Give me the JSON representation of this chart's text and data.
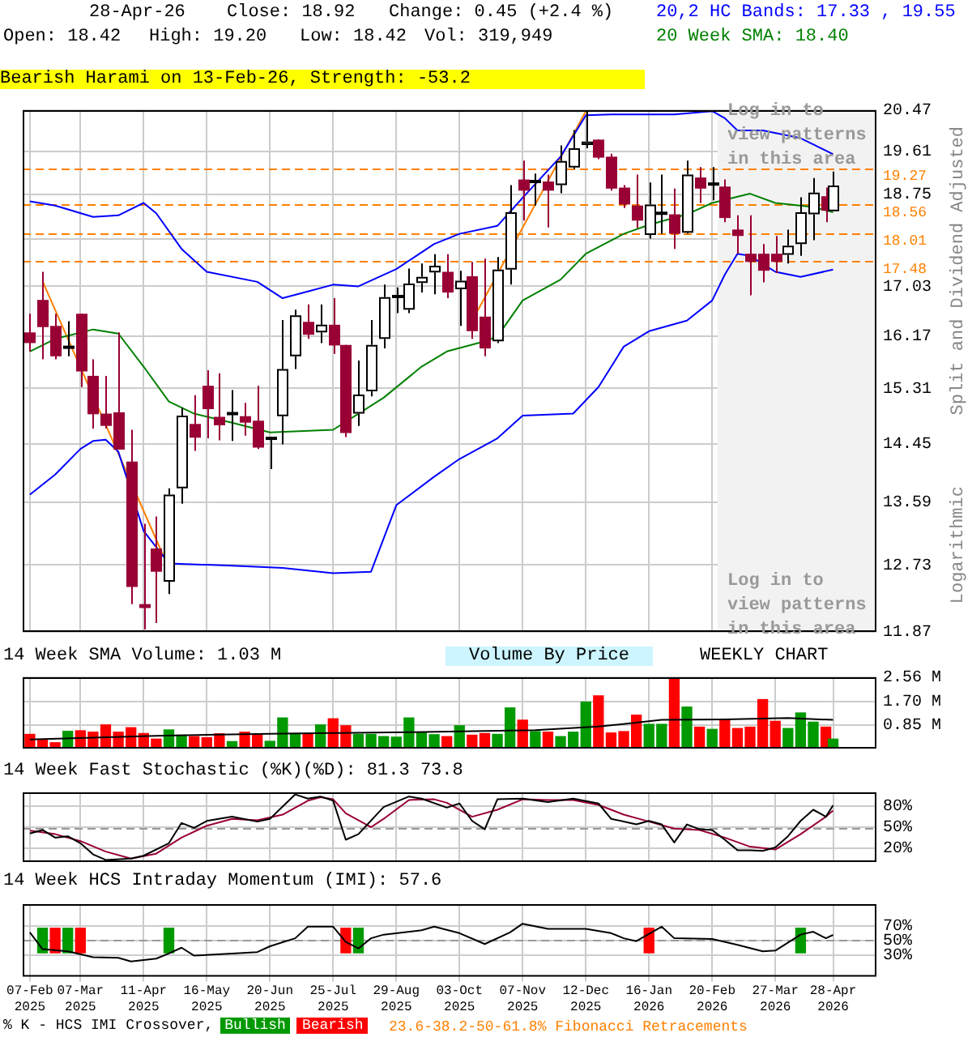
{
  "chart_data": [
    {
      "type": "candlestick",
      "title": "Bearish Harami on 13-Feb-26, Strength: -53.2",
      "ylabel": "Split and Dividend Adjusted",
      "x": [
        "2025-02-07",
        "2025-02-14",
        "2025-02-21",
        "2025-02-28",
        "2025-03-07",
        "2025-03-14",
        "2025-03-21",
        "2025-03-28",
        "2025-04-04",
        "2025-04-11",
        "2025-04-18",
        "2025-04-25",
        "2025-05-02",
        "2025-05-09",
        "2025-05-16",
        "2025-05-23",
        "2025-05-30",
        "2025-06-06",
        "2025-06-13",
        "2025-06-20",
        "2025-06-27",
        "2025-07-04",
        "2025-07-11",
        "2025-07-18",
        "2025-07-25",
        "2025-08-01",
        "2025-08-08",
        "2025-08-15",
        "2025-08-22",
        "2025-08-29",
        "2025-09-05",
        "2025-09-12",
        "2025-09-19",
        "2025-09-26",
        "2025-10-03",
        "2025-10-10",
        "2025-10-17",
        "2025-10-24",
        "2025-10-31",
        "2025-11-07",
        "2025-11-14",
        "2025-11-21",
        "2025-11-28",
        "2025-12-05",
        "2025-12-12",
        "2025-12-19",
        "2025-12-26",
        "2026-01-02",
        "2026-01-09",
        "2026-01-16",
        "2026-01-23",
        "2026-01-30",
        "2026-02-06",
        "2026-02-13",
        "2026-02-20",
        "2026-02-27",
        "2026-03-06",
        "2026-03-13",
        "2026-03-20",
        "2026-03-27",
        "2026-04-03",
        "2026-04-10",
        "2026-04-17",
        "2026-04-24",
        "2026-04-28"
      ],
      "ohlc": [
        [
          16.23,
          16.55,
          15.91,
          16.05
        ],
        [
          16.79,
          17.29,
          15.78,
          16.32
        ],
        [
          16.34,
          16.55,
          15.78,
          15.83
        ],
        [
          15.98,
          16.42,
          15.83,
          15.98
        ],
        [
          16.55,
          16.55,
          15.33,
          15.58
        ],
        [
          15.51,
          15.78,
          14.68,
          14.9
        ],
        [
          14.91,
          15.51,
          14.68,
          14.72
        ],
        [
          14.93,
          16.23,
          14.36,
          14.36
        ],
        [
          14.18,
          14.66,
          12.22,
          12.44
        ],
        [
          12.22,
          13.29,
          11.9,
          12.17
        ],
        [
          12.95,
          13.39,
          11.98,
          12.64
        ],
        [
          12.51,
          13.79,
          12.35,
          13.7
        ],
        [
          13.79,
          15.0,
          13.57,
          14.88
        ],
        [
          14.75,
          15.2,
          14.34,
          14.54
        ],
        [
          15.35,
          15.6,
          14.53,
          14.98
        ],
        [
          14.86,
          15.55,
          14.5,
          14.73
        ],
        [
          14.91,
          15.28,
          14.49,
          14.91
        ],
        [
          14.87,
          15.08,
          14.57,
          14.77
        ],
        [
          14.8,
          15.35,
          14.37,
          14.39
        ],
        [
          14.53,
          14.53,
          14.07,
          14.53
        ],
        [
          14.87,
          16.44,
          14.44,
          15.62
        ],
        [
          15.83,
          16.62,
          15.62,
          16.52
        ],
        [
          16.41,
          16.71,
          16.12,
          16.19
        ],
        [
          16.23,
          16.71,
          16.05,
          16.36
        ],
        [
          16.36,
          16.82,
          15.87,
          16.01
        ],
        [
          16.02,
          16.02,
          14.55,
          14.61
        ],
        [
          14.91,
          15.76,
          14.72,
          15.21
        ],
        [
          15.26,
          16.44,
          15.18,
          16.02
        ],
        [
          16.12,
          17.06,
          15.96,
          16.84
        ],
        [
          16.85,
          17.01,
          16.56,
          16.85
        ],
        [
          16.62,
          17.35,
          16.56,
          17.08
        ],
        [
          17.09,
          17.44,
          16.92,
          17.2
        ],
        [
          17.28,
          17.61,
          16.89,
          17.4
        ],
        [
          17.29,
          17.61,
          16.82,
          16.92
        ],
        [
          16.98,
          17.31,
          16.34,
          17.13
        ],
        [
          17.21,
          17.47,
          16.12,
          16.25
        ],
        [
          16.5,
          17.53,
          15.83,
          15.96
        ],
        [
          16.08,
          17.56,
          16.05,
          17.33
        ],
        [
          17.33,
          18.93,
          17.06,
          18.4
        ],
        [
          19.04,
          19.42,
          18.24,
          18.82
        ],
        [
          19.0,
          19.16,
          18.53,
          19.0
        ],
        [
          19.0,
          19.14,
          18.11,
          18.82
        ],
        [
          18.93,
          19.73,
          18.77,
          19.41
        ],
        [
          19.28,
          20.05,
          19.25,
          19.67
        ],
        [
          19.74,
          20.45,
          19.67,
          19.81
        ],
        [
          19.85,
          19.85,
          19.45,
          19.48
        ],
        [
          19.5,
          19.56,
          18.82,
          18.86
        ],
        [
          18.88,
          18.93,
          18.48,
          18.55
        ],
        [
          18.53,
          19.14,
          18.1,
          18.24
        ],
        [
          17.97,
          18.98,
          17.9,
          18.55
        ],
        [
          18.38,
          19.14,
          17.99,
          18.38
        ],
        [
          18.36,
          18.86,
          17.71,
          17.99
        ],
        [
          18.01,
          19.42,
          17.99,
          19.14
        ],
        [
          19.08,
          19.29,
          18.58,
          18.86
        ],
        [
          18.95,
          19.29,
          18.63,
          18.95
        ],
        [
          18.9,
          19.04,
          18.21,
          18.29
        ],
        [
          18.07,
          18.34,
          17.62,
          17.95
        ],
        [
          17.62,
          18.34,
          16.87,
          17.47
        ],
        [
          17.62,
          17.8,
          17.1,
          17.31
        ],
        [
          17.62,
          17.95,
          17.27,
          17.47
        ],
        [
          17.6,
          18.07,
          17.44,
          17.77
        ],
        [
          17.8,
          18.69,
          17.58,
          18.4
        ],
        [
          18.36,
          19.07,
          17.87,
          18.78
        ],
        [
          18.71,
          18.88,
          18.21,
          18.43
        ],
        [
          18.42,
          19.2,
          18.42,
          18.92
        ]
      ],
      "series": [
        {
          "type": "line",
          "color": "#0000ff",
          "x": [
            "2025-02-07",
            "2025-02-21",
            "2025-03-14",
            "2025-03-28",
            "2025-04-11",
            "2025-04-18",
            "2025-05-02",
            "2025-05-16",
            "2025-06-13",
            "2025-06-27",
            "2025-07-11",
            "2025-07-25",
            "2025-08-08",
            "2025-08-29",
            "2025-09-19",
            "2025-10-03",
            "2025-10-24",
            "2025-11-07",
            "2025-11-28",
            "2025-12-12",
            "2025-12-26",
            "2026-01-30",
            "2026-02-20",
            "2026-02-27",
            "2026-03-06",
            "2026-03-20",
            "2026-04-10",
            "2026-04-28"
          ],
          "values": [
            18.61,
            18.53,
            18.31,
            18.34,
            18.58,
            18.38,
            17.71,
            17.29,
            17.11,
            16.82,
            16.94,
            17.06,
            17.03,
            17.34,
            17.8,
            17.99,
            18.14,
            18.68,
            19.5,
            20.36,
            20.38,
            20.38,
            20.45,
            20.3,
            20.04,
            20.04,
            19.88,
            19.55
          ]
        },
        {
          "type": "line",
          "color": "#0000ff",
          "x": [
            "2025-02-07",
            "2025-02-21",
            "2025-03-07",
            "2025-03-14",
            "2025-03-21",
            "2025-03-28",
            "2025-04-11",
            "2025-04-25",
            "2025-05-30",
            "2025-06-27",
            "2025-07-25",
            "2025-08-15",
            "2025-08-29",
            "2025-09-19",
            "2025-10-03",
            "2025-10-24",
            "2025-11-07",
            "2025-12-05",
            "2025-12-19",
            "2026-01-02",
            "2026-01-16",
            "2026-02-06",
            "2026-02-20",
            "2026-02-27",
            "2026-03-06",
            "2026-03-13",
            "2026-03-27",
            "2026-04-10",
            "2026-04-28"
          ],
          "values": [
            13.7,
            13.99,
            14.37,
            14.49,
            14.51,
            14.33,
            13.19,
            12.75,
            12.72,
            12.69,
            12.62,
            12.64,
            13.55,
            13.96,
            14.22,
            14.53,
            14.88,
            14.91,
            15.33,
            15.99,
            16.25,
            16.43,
            16.78,
            17.24,
            17.62,
            17.58,
            17.29,
            17.2,
            17.33
          ]
        },
        {
          "type": "line",
          "color": "#008000",
          "x": [
            "2025-02-07",
            "2025-02-21",
            "2025-03-14",
            "2025-03-28",
            "2025-04-11",
            "2025-04-25",
            "2025-05-09",
            "2025-05-30",
            "2025-06-20",
            "2025-07-25",
            "2025-08-22",
            "2025-09-12",
            "2025-09-26",
            "2025-10-17",
            "2025-10-24",
            "2025-11-07",
            "2025-11-28",
            "2025-12-12",
            "2026-01-02",
            "2026-01-16",
            "2026-02-06",
            "2026-02-20",
            "2026-03-13",
            "2026-03-27",
            "2026-04-17",
            "2026-04-28"
          ],
          "values": [
            15.91,
            16.12,
            16.28,
            16.21,
            15.66,
            15.1,
            14.91,
            14.77,
            14.62,
            14.66,
            15.16,
            15.66,
            15.91,
            16.08,
            16.16,
            16.78,
            17.15,
            17.62,
            17.99,
            18.16,
            18.36,
            18.58,
            18.76,
            18.58,
            18.5,
            18.4
          ]
        },
        {
          "type": "line",
          "color": "#ff8000",
          "x": [
            "2025-02-14",
            "2025-04-22"
          ],
          "values": [
            17.12,
            12.85
          ]
        },
        {
          "type": "line",
          "color": "#ff8000",
          "x": [
            "2025-10-13",
            "2025-12-12"
          ],
          "values": [
            16.6,
            20.45
          ]
        }
      ],
      "xlim": [
        "2025-02-03",
        "2026-05-22"
      ],
      "xticks": [
        "2025-02-07",
        "2025-03-07",
        "2025-04-11",
        "2025-05-16",
        "2025-06-20",
        "2025-07-25",
        "2025-08-29",
        "2025-10-03",
        "2025-11-07",
        "2025-12-12",
        "2026-01-16",
        "2026-02-20",
        "2026-03-27",
        "2026-04-28"
      ],
      "ylim": [
        11.87,
        20.47
      ],
      "yticks": [
        11.87,
        12.73,
        13.59,
        14.45,
        15.31,
        16.17,
        17.03,
        {
          "value": 17.89,
          "label": null
        },
        18.75,
        19.61,
        20.47
      ],
      "log": true,
      "grid": true,
      "tick_labels": "y",
      "ref_lines": [
        {
          "axis": "y",
          "value": 19.27,
          "label": "19.27",
          "color": "#ff8000",
          "line_style": "dashed"
        },
        {
          "axis": "y",
          "value": 18.56,
          "label": "18.56",
          "color": "#ff8000",
          "line_style": "dashed"
        },
        {
          "axis": "y",
          "value": 18.01,
          "label": "18.01",
          "color": "#ff8000",
          "line_style": "dashed"
        },
        {
          "axis": "y",
          "value": 17.48,
          "label": "17.48",
          "color": "#ff8000",
          "line_style": "dashed"
        }
      ],
      "bands": [
        {
          "axis": "x",
          "from": "2026-02-23",
          "to": "2026-05-22",
          "color": "#f2f2f2"
        }
      ],
      "annotations": [
        "28-Apr-26",
        "Close: 18.92",
        "Change: 0.45 (+2.4 %)",
        "Open: 18.42",
        "High: 19.20",
        "Low: 18.42",
        "Vol: 319,949",
        "20,2 HC Bands: 17.33 , 19.55",
        "20 Week SMA: 18.40",
        "Log in to view patterns in this area",
        "Log in to view patterns in this area",
        "Logarithmic",
        "23.6-38.2-50-61.8% Fibonacci Retracements"
      ]
    },
    {
      "type": "bar",
      "title": "14 Week SMA Volume: 1.03 M",
      "x": [
        "2025-02-07",
        "2025-02-14",
        "2025-02-21",
        "2025-02-28",
        "2025-03-07",
        "2025-03-14",
        "2025-03-21",
        "2025-03-28",
        "2025-04-04",
        "2025-04-11",
        "2025-04-18",
        "2025-04-25",
        "2025-05-02",
        "2025-05-09",
        "2025-05-16",
        "2025-05-23",
        "2025-05-30",
        "2025-06-06",
        "2025-06-13",
        "2025-06-20",
        "2025-06-27",
        "2025-07-04",
        "2025-07-11",
        "2025-07-18",
        "2025-07-25",
        "2025-08-01",
        "2025-08-08",
        "2025-08-15",
        "2025-08-22",
        "2025-08-29",
        "2025-09-05",
        "2025-09-12",
        "2025-09-19",
        "2025-09-26",
        "2025-10-03",
        "2025-10-10",
        "2025-10-17",
        "2025-10-24",
        "2025-10-31",
        "2025-11-07",
        "2025-11-14",
        "2025-11-21",
        "2025-11-28",
        "2025-12-05",
        "2025-12-12",
        "2025-12-19",
        "2025-12-26",
        "2026-01-02",
        "2026-01-09",
        "2026-01-16",
        "2026-01-23",
        "2026-01-30",
        "2026-02-06",
        "2026-02-13",
        "2026-02-20",
        "2026-02-27",
        "2026-03-06",
        "2026-03-13",
        "2026-03-20",
        "2026-03-27",
        "2026-04-03",
        "2026-04-10",
        "2026-04-17",
        "2026-04-24",
        "2026-04-28"
      ],
      "series": [
        {
          "colors": [
            "#ff0000",
            "#ff0000",
            "#ff0000",
            "#009900",
            "#ff0000",
            "#ff0000",
            "#ff0000",
            "#ff0000",
            "#ff0000",
            "#ff0000",
            "#ff0000",
            "#009900",
            "#009900",
            "#ff0000",
            "#ff0000",
            "#ff0000",
            "#009900",
            "#ff0000",
            "#ff0000",
            "#009900",
            "#009900",
            "#009900",
            "#ff0000",
            "#009900",
            "#ff0000",
            "#ff0000",
            "#009900",
            "#009900",
            "#009900",
            "#009900",
            "#009900",
            "#009900",
            "#009900",
            "#ff0000",
            "#009900",
            "#ff0000",
            "#ff0000",
            "#009900",
            "#009900",
            "#ff0000",
            "#009900",
            "#ff0000",
            "#009900",
            "#009900",
            "#009900",
            "#ff0000",
            "#ff0000",
            "#ff0000",
            "#ff0000",
            "#009900",
            "#009900",
            "#ff0000",
            "#009900",
            "#ff0000",
            "#009900",
            "#ff0000",
            "#ff0000",
            "#ff0000",
            "#ff0000",
            "#ff0000",
            "#009900",
            "#009900",
            "#009900",
            "#ff0000",
            "#009900"
          ],
          "values": [
            0.51,
            0.3,
            0.21,
            0.62,
            0.64,
            0.59,
            0.85,
            0.59,
            0.75,
            0.54,
            0.34,
            0.67,
            0.48,
            0.43,
            0.39,
            0.53,
            0.25,
            0.59,
            0.49,
            0.26,
            1.1,
            0.54,
            0.51,
            0.85,
            1.07,
            0.82,
            0.51,
            0.51,
            0.43,
            0.41,
            1.1,
            0.56,
            0.5,
            0.43,
            0.82,
            0.48,
            0.54,
            0.51,
            1.46,
            1.02,
            0.61,
            0.59,
            0.43,
            0.59,
            1.67,
            1.89,
            0.56,
            0.61,
            1.2,
            0.87,
            0.87,
            2.54,
            1.49,
            0.77,
            0.69,
            1.03,
            0.72,
            0.77,
            1.76,
            0.98,
            0.72,
            1.28,
            0.95,
            0.77,
            0.34
          ]
        },
        {
          "type": "line",
          "color": "#000000",
          "x": [
            "2025-02-07",
            "2025-04-18",
            "2025-06-27",
            "2025-09-05",
            "2025-11-14",
            "2025-12-19",
            "2026-01-23",
            "2026-02-27",
            "2026-04-03",
            "2026-04-28"
          ],
          "values": [
            0.33,
            0.46,
            0.54,
            0.59,
            0.66,
            0.79,
            1.03,
            1.05,
            1.1,
            1.03
          ]
        }
      ],
      "xlim": [
        "2025-02-03",
        "2026-05-22"
      ],
      "xticks": [
        "2025-02-07",
        "2025-03-07",
        "2025-04-11",
        "2025-05-16",
        "2025-06-20",
        "2025-07-25",
        "2025-08-29",
        "2025-10-03",
        "2025-11-07",
        "2025-12-12",
        "2026-01-16",
        "2026-02-20",
        "2026-03-27",
        "2026-04-28"
      ],
      "ylim": [
        0,
        2.56
      ],
      "yticks": [
        {
          "value": 0.85,
          "label": "0.85 M"
        },
        {
          "value": 1.7,
          "label": "1.70 M"
        },
        {
          "value": 2.56,
          "label": "2.56 M"
        }
      ],
      "grid": true,
      "tick_labels": "y",
      "annotations": [
        "Volume By Price",
        "WEEKLY CHART"
      ]
    },
    {
      "type": "line",
      "title": "14 Week Fast Stochastic (%K)(%D): 81.3 73.8",
      "series": [
        {
          "color": "#000000",
          "x": [
            "2025-02-07",
            "2025-02-14",
            "2025-02-21",
            "2025-02-28",
            "2025-03-07",
            "2025-03-14",
            "2025-03-21",
            "2025-04-04",
            "2025-04-11",
            "2025-04-25",
            "2025-05-02",
            "2025-05-09",
            "2025-05-16",
            "2025-05-30",
            "2025-06-13",
            "2025-06-20",
            "2025-07-04",
            "2025-07-11",
            "2025-07-18",
            "2025-07-25",
            "2025-08-01",
            "2025-08-08",
            "2025-08-22",
            "2025-09-05",
            "2025-09-12",
            "2025-09-26",
            "2025-10-03",
            "2025-10-10",
            "2025-10-17",
            "2025-10-24",
            "2025-11-07",
            "2025-11-21",
            "2025-12-05",
            "2025-12-19",
            "2025-12-26",
            "2026-01-09",
            "2026-01-16",
            "2026-01-23",
            "2026-01-30",
            "2026-02-06",
            "2026-02-13",
            "2026-02-20",
            "2026-02-27",
            "2026-03-06",
            "2026-03-13",
            "2026-03-20",
            "2026-03-27",
            "2026-04-03",
            "2026-04-10",
            "2026-04-17",
            "2026-04-24",
            "2026-04-28"
          ],
          "values": [
            41,
            46,
            35,
            37,
            27,
            11,
            3,
            5,
            9,
            27,
            56,
            49,
            59,
            65,
            58,
            62,
            97,
            91,
            94,
            88,
            32,
            40,
            79,
            94,
            91,
            78,
            84,
            59,
            47,
            90,
            91,
            86,
            91,
            84,
            62,
            54,
            59,
            54,
            28,
            54,
            47,
            46,
            32,
            17,
            17,
            16,
            21,
            37,
            59,
            75,
            65,
            81.3
          ]
        },
        {
          "color": "#990033",
          "x": [
            "2025-02-07",
            "2025-02-21",
            "2025-03-07",
            "2025-03-21",
            "2025-04-04",
            "2025-04-18",
            "2025-05-02",
            "2025-05-16",
            "2025-05-30",
            "2025-06-13",
            "2025-06-27",
            "2025-07-11",
            "2025-07-18",
            "2025-07-25",
            "2025-08-01",
            "2025-08-15",
            "2025-08-22",
            "2025-09-05",
            "2025-09-19",
            "2025-09-26",
            "2025-10-10",
            "2025-10-24",
            "2025-11-07",
            "2025-11-21",
            "2025-12-05",
            "2025-12-19",
            "2026-01-02",
            "2026-01-16",
            "2026-01-30",
            "2026-02-13",
            "2026-02-27",
            "2026-03-13",
            "2026-03-27",
            "2026-04-10",
            "2026-04-24",
            "2026-04-28"
          ],
          "values": [
            45,
            40,
            30,
            15,
            5,
            12,
            35,
            52,
            62,
            60,
            68,
            88,
            93,
            90,
            70,
            50,
            62,
            89,
            90,
            85,
            65,
            75,
            90,
            89,
            89,
            82,
            68,
            58,
            48,
            46,
            35,
            22,
            18,
            40,
            65,
            73.8
          ]
        }
      ],
      "xlim": [
        "2025-02-03",
        "2026-05-22"
      ],
      "xticks": [
        "2025-02-07",
        "2025-03-07",
        "2025-04-11",
        "2025-05-16",
        "2025-06-20",
        "2025-07-25",
        "2025-08-29",
        "2025-10-03",
        "2025-11-07",
        "2025-12-12",
        "2026-01-16",
        "2026-02-20",
        "2026-03-27",
        "2026-04-28"
      ],
      "ylim": [
        0,
        100
      ],
      "yticks": [
        {
          "value": 20,
          "label": "20%"
        },
        {
          "value": 50,
          "label": "50%"
        },
        {
          "value": 80,
          "label": "80%"
        }
      ],
      "grid": true,
      "tick_labels": "y",
      "ref_lines": [
        {
          "axis": "y",
          "value": 50,
          "color": "#999999",
          "line_style": "dashed"
        }
      ]
    },
    {
      "type": "line",
      "title": "14 Week HCS Intraday Momentum (IMI): 57.6",
      "legend_title": "% K - HCS IMI Crossover,",
      "legend": "bottom",
      "series": [
        {
          "name": "Bullish",
          "type": "bar",
          "color": "#009900",
          "x": [
            "2025-02-14",
            "2025-02-28",
            "2025-04-25",
            "2025-08-08",
            "2026-04-10"
          ],
          "base": [
            33,
            33,
            33,
            33,
            33
          ],
          "values": [
            34,
            34,
            34,
            34,
            34
          ]
        },
        {
          "name": "Bearish",
          "type": "bar",
          "color": "#ff0000",
          "x": [
            "2025-02-21",
            "2025-03-07",
            "2025-08-01",
            "2026-01-16"
          ],
          "base": [
            33,
            33,
            33,
            33
          ],
          "values": [
            34,
            34,
            34,
            34
          ]
        },
        {
          "color": "#000000",
          "x": [
            "2025-02-07",
            "2025-02-14",
            "2025-02-28",
            "2025-03-14",
            "2025-03-28",
            "2025-04-04",
            "2025-04-18",
            "2025-04-25",
            "2025-05-02",
            "2025-05-09",
            "2025-05-30",
            "2025-06-13",
            "2025-06-20",
            "2025-07-04",
            "2025-07-11",
            "2025-07-25",
            "2025-08-01",
            "2025-08-08",
            "2025-08-15",
            "2025-08-22",
            "2025-09-12",
            "2025-09-19",
            "2025-10-03",
            "2025-10-17",
            "2025-10-31",
            "2025-11-07",
            "2025-11-21",
            "2025-12-12",
            "2025-12-26",
            "2026-01-02",
            "2026-01-09",
            "2026-01-23",
            "2026-01-30",
            "2026-02-20",
            "2026-03-06",
            "2026-03-20",
            "2026-03-27",
            "2026-04-10",
            "2026-04-17",
            "2026-04-24",
            "2026-04-28"
          ],
          "values": [
            61,
            38,
            35,
            27,
            26,
            21,
            25,
            32,
            40,
            29,
            32,
            34,
            42,
            53,
            69,
            69,
            48,
            39,
            53,
            58,
            64,
            69,
            60,
            45,
            61,
            73,
            66,
            66,
            60,
            53,
            49,
            69,
            53,
            52,
            44,
            35,
            36,
            58,
            62,
            53,
            57.6
          ]
        }
      ],
      "xlim": [
        "2025-02-03",
        "2026-05-22"
      ],
      "xticks": [
        {
          "value": "2025-02-07",
          "label": "07-Feb 2025"
        },
        {
          "value": "2025-03-07",
          "label": "07-Mar 2025"
        },
        {
          "value": "2025-04-11",
          "label": "11-Apr 2025"
        },
        {
          "value": "2025-05-16",
          "label": "16-May 2025"
        },
        {
          "value": "2025-06-20",
          "label": "20-Jun 2025"
        },
        {
          "value": "2025-07-25",
          "label": "25-Jul 2025"
        },
        {
          "value": "2025-08-29",
          "label": "29-Aug 2025"
        },
        {
          "value": "2025-10-03",
          "label": "03-Oct 2025"
        },
        {
          "value": "2025-11-07",
          "label": "07-Nov 2025"
        },
        {
          "value": "2025-12-12",
          "label": "12-Dec 2025"
        },
        {
          "value": "2026-01-16",
          "label": "16-Jan 2026"
        },
        {
          "value": "2026-02-20",
          "label": "20-Feb 2026"
        },
        {
          "value": "2026-03-27",
          "label": "27-Mar 2026"
        },
        {
          "value": "2026-04-28",
          "label": "28-Apr 2026"
        }
      ],
      "ylim": [
        0,
        100
      ],
      "yticks": [
        {
          "value": 30,
          "label": "30%"
        },
        {
          "value": 50,
          "label": "50%"
        },
        {
          "value": 70,
          "label": "70%"
        }
      ],
      "grid": true,
      "ref_lines": [
        {
          "axis": "y",
          "value": 50,
          "color": "#999999",
          "line_style": "dashed"
        }
      ]
    }
  ]
}
